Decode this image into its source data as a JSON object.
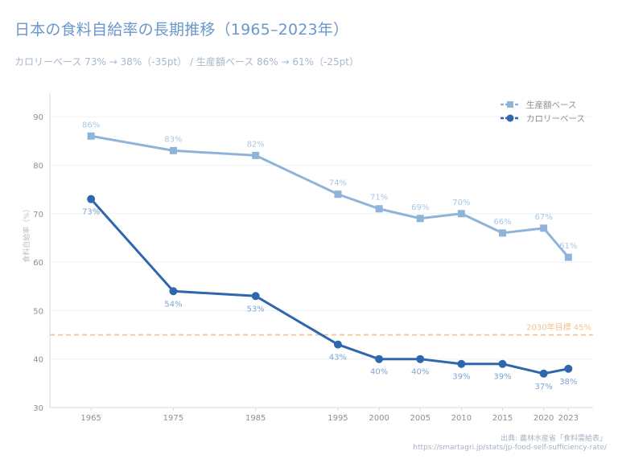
{
  "title": "日本の食料自給率の長期推移（1965–2023年）",
  "subtitle": "カロリーベース 73% → 38%（-35pt） / 生産額ベース 86% → 61%（-25pt）",
  "source_line1": "出典: 農林水産省「食料需給表」",
  "source_line2": "https://smartagri.jp/stats/jp-food-self-sufficiency-rate/",
  "colors": {
    "production": "#8fb4da",
    "calorie": "#2f67ad",
    "target": "#f3c48e",
    "production_label": "#a9c6e6",
    "calorie_label": "#7ea4d2",
    "axis_text": "#8a8f96",
    "grid": "#eef1f5"
  },
  "chart_data": {
    "type": "line",
    "title": "日本の食料自給率の長期推移（1965–2023年）",
    "xlabel": "",
    "ylabel": "食料自給率（%）",
    "x": [
      1965,
      1975,
      1985,
      1995,
      2000,
      2005,
      2010,
      2015,
      2020,
      2023
    ],
    "xlim": [
      1960,
      2026
    ],
    "ylim": [
      30,
      95
    ],
    "yticks": [
      30,
      40,
      50,
      60,
      70,
      80,
      90
    ],
    "legend_position": "top-right",
    "series": [
      {
        "name": "生産額ベース",
        "marker": "square",
        "label_position": "above",
        "values": [
          86,
          83,
          82,
          74,
          71,
          69,
          70,
          66,
          67,
          61
        ],
        "labels": [
          "86%",
          "83%",
          "82%",
          "74%",
          "71%",
          "69%",
          "70%",
          "66%",
          "67%",
          "61%"
        ]
      },
      {
        "name": "カロリーベース",
        "marker": "circle",
        "label_position": "below",
        "values": [
          73,
          54,
          53,
          43,
          40,
          40,
          39,
          39,
          37,
          38
        ],
        "labels": [
          "73%",
          "54%",
          "53%",
          "43%",
          "40%",
          "40%",
          "39%",
          "39%",
          "37%",
          "38%"
        ]
      }
    ],
    "annotations": [
      {
        "type": "hline",
        "y": 45,
        "label": "2030年目標 45%"
      }
    ]
  }
}
